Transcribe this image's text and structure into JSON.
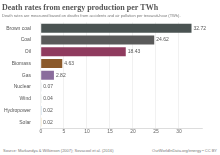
{
  "chart_data": {
    "type": "bar",
    "title": "Death rates from energy production per TWh",
    "subtitle": "Death rates are measured based on deaths from accidents and air pollution per terawatt-hour (TWh).",
    "categories": [
      "Brown coal",
      "Coal",
      "Oil",
      "Biomass",
      "Gas",
      "Nuclear",
      "Wind",
      "Hydropower",
      "Solar"
    ],
    "values": [
      32.72,
      24.62,
      18.43,
      4.63,
      2.82,
      0.07,
      0.04,
      0.02,
      0.02
    ],
    "colors": [
      "#4a5352",
      "#5a5a5a",
      "#8f3b5e",
      "#8b5a2b",
      "#8a6c9c",
      "#3f6e8c",
      "#4f8a6e",
      "#3c7fb0",
      "#d4a02a"
    ],
    "orientation": "horizontal",
    "xlim": [
      0,
      35
    ],
    "xticks": [
      0,
      5,
      10,
      15,
      20,
      25,
      30
    ],
    "grid": true,
    "data_labels": true,
    "annotations": [
      "Source: Markandya & Wilkinson (2007); Sovacool et al. (2016)",
      "OurWorldInData.org/energy • CC BY"
    ]
  }
}
